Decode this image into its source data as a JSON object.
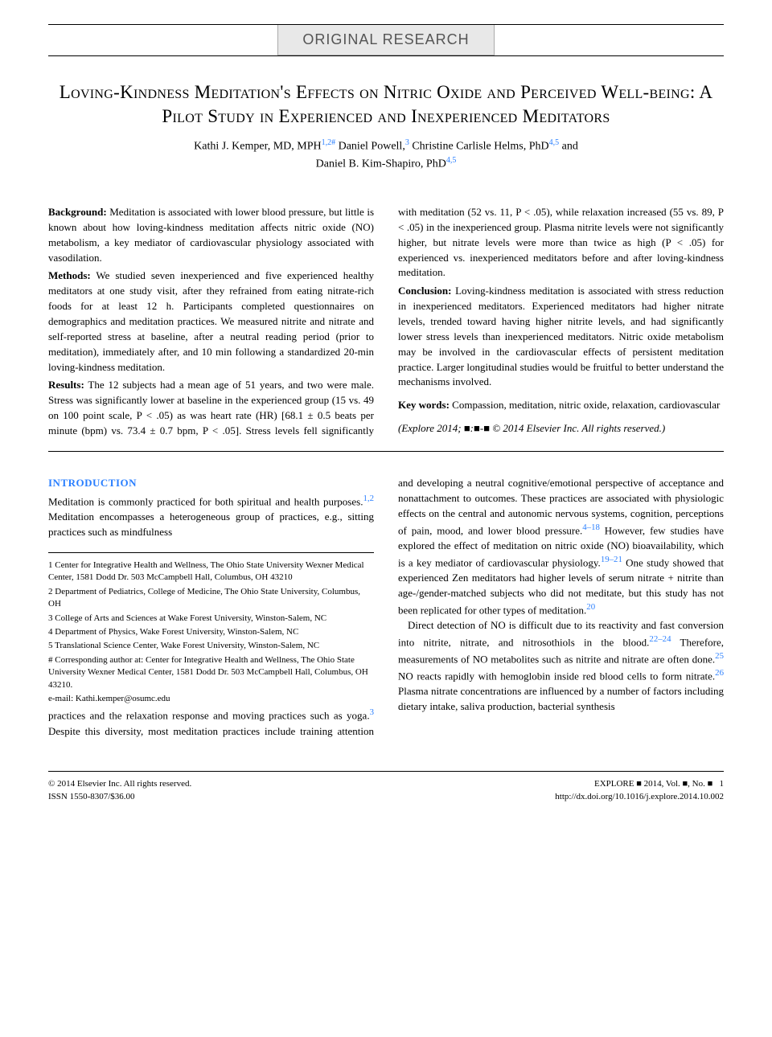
{
  "category": "ORIGINAL RESEARCH",
  "title": "Loving-Kindness Meditation's Effects on Nitric Oxide and Perceived Well-being: A Pilot Study in Experienced and Inexperienced Meditators",
  "authors_line1": "Kathi J. Kemper, MD, MPH",
  "authors_sup1": "1,2#",
  "authors_line1b": " Daniel Powell,",
  "authors_sup2": "3",
  "authors_line1c": " Christine Carlisle Helms, PhD",
  "authors_sup3": "4,5",
  "authors_line1d": " and",
  "authors_line2": "Daniel B. Kim-Shapiro, PhD",
  "authors_sup4": "4,5",
  "abstract": {
    "background_label": "Background:",
    "background": " Meditation is associated with lower blood pressure, but little is known about how loving-kindness meditation affects nitric oxide (NO) metabolism, a key mediator of cardiovascular physiology associated with vasodilation.",
    "methods_label": "Methods:",
    "methods": " We studied seven inexperienced and five experienced healthy meditators at one study visit, after they refrained from eating nitrate-rich foods for at least 12 h. Participants completed questionnaires on demographics and meditation practices. We measured nitrite and nitrate and self-reported stress at baseline, after a neutral reading period (prior to meditation), immediately after, and 10 min following a standardized 20-min loving-kindness meditation.",
    "results_label": "Results:",
    "results": " The 12 subjects had a mean age of 51 years, and two were male. Stress was significantly lower at baseline in the experienced group (15 vs. 49 on 100 point scale, P < .05) as was heart rate (HR) [68.1 ± 0.5 beats per minute (bpm) vs. 73.4 ± 0.7 bpm, P < .05]. Stress levels fell significantly with meditation (52 vs. 11, P < .05), while relaxation increased (55 vs. 89, P < .05) in the inexperienced group. Plasma nitrite levels were not significantly higher, but nitrate levels were more than twice as high (P < .05) for experienced vs. inexperienced meditators before and after loving-kindness meditation.",
    "conclusion_label": "Conclusion:",
    "conclusion": " Loving-kindness meditation is associated with stress reduction in inexperienced meditators. Experienced meditators had higher nitrate levels, trended toward having higher nitrite levels, and had significantly lower stress levels than inexperienced meditators. Nitric oxide metabolism may be involved in the cardiovascular effects of persistent meditation practice. Larger longitudinal studies would be fruitful to better understand the mechanisms involved.",
    "keywords_label": "Key words:",
    "keywords": " Compassion, meditation, nitric oxide, relaxation, cardiovascular",
    "citation": "(Explore 2014; ■:■-■ © 2014 Elsevier Inc. All rights reserved.)"
  },
  "intro": {
    "heading": "INTRODUCTION",
    "p1a": "Meditation is commonly practiced for both spiritual and health purposes.",
    "p1_ref1": "1,2",
    "p1b": " Meditation encompasses a heterogeneous group of practices, e.g., sitting practices such as mindfulness",
    "p2a": "practices and the relaxation response and moving practices such as yoga.",
    "p2_ref1": "3",
    "p2b": " Despite this diversity, most meditation practices include training attention and developing a neutral cognitive/emotional perspective of acceptance and nonattachment to outcomes. These practices are associated with physiologic effects on the central and autonomic nervous systems, cognition, perceptions of pain, mood, and lower blood pressure.",
    "p2_ref2": "4–18",
    "p2c": " However, few studies have explored the effect of meditation on nitric oxide (NO) bioavailability, which is a key mediator of cardiovascular physiology.",
    "p2_ref3": "19–21",
    "p2d": " One study showed that experienced Zen meditators had higher levels of serum nitrate + nitrite than age-/gender-matched subjects who did not meditate, but this study has not been replicated for other types of meditation.",
    "p2_ref4": "20",
    "p3a": "Direct detection of NO is difficult due to its reactivity and fast conversion into nitrite, nitrate, and nitrosothiols in the blood.",
    "p3_ref1": "22–24",
    "p3b": " Therefore, measurements of NO metabolites such as nitrite and nitrate are often done.",
    "p3_ref2": "25",
    "p3c": " NO reacts rapidly with hemoglobin inside red blood cells to form nitrate.",
    "p3_ref3": "26",
    "p3d": " Plasma nitrate concentrations are influenced by a number of factors including dietary intake, saliva production, bacterial synthesis"
  },
  "affiliations": {
    "a1": "1 Center for Integrative Health and Wellness, The Ohio State University Wexner Medical Center, 1581 Dodd Dr. 503 McCampbell Hall, Columbus, OH 43210",
    "a2": "2 Department of Pediatrics, College of Medicine, The Ohio State University, Columbus, OH",
    "a3": "3 College of Arts and Sciences at Wake Forest University, Winston-Salem, NC",
    "a4": "4 Department of Physics, Wake Forest University, Winston-Salem, NC",
    "a5": "5 Translational Science Center, Wake Forest University, Winston-Salem, NC",
    "corr": "# Corresponding author at: Center for Integrative Health and Wellness, The Ohio State University Wexner Medical Center, 1581 Dodd Dr. 503 McCampbell Hall, Columbus, OH 43210.",
    "email": "e-mail: Kathi.kemper@osumc.edu"
  },
  "footer": {
    "copyright": "© 2014 Elsevier Inc. All rights reserved.",
    "issn": "ISSN 1550-8307/$36.00",
    "journal": "EXPLORE ■ 2014, Vol. ■, No. ■",
    "page": "1",
    "doi": "http://dx.doi.org/10.1016/j.explore.2014.10.002"
  }
}
